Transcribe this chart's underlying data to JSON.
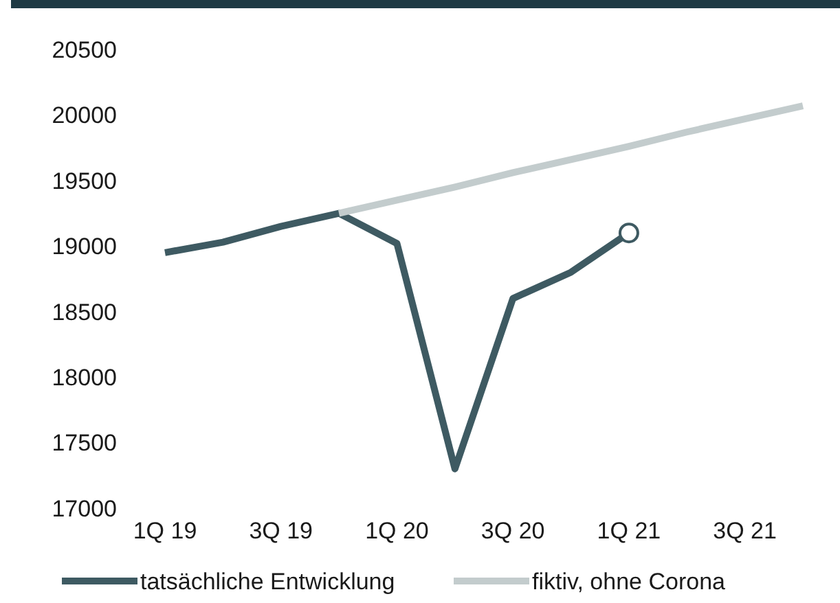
{
  "chart_data": {
    "type": "line",
    "categories": [
      "1Q 19",
      null,
      "3Q 19",
      null,
      "1Q 20",
      null,
      "3Q 20",
      null,
      "1Q 21",
      null,
      "3Q 21",
      null
    ],
    "series": [
      {
        "name": "tatsächliche Entwicklung",
        "color": "#3e5a62",
        "values": [
          18950,
          19030,
          19150,
          19250,
          19020,
          17300,
          18600,
          18800,
          19100,
          null,
          null,
          null
        ]
      },
      {
        "name": "fiktiv, ohne Corona",
        "color": "#c3cccd",
        "values": [
          null,
          null,
          null,
          19250,
          19350,
          19450,
          19560,
          19660,
          19760,
          19870,
          19970,
          20070
        ]
      },
      {
        "type": "scatter",
        "color": "#3e5a62",
        "x": [
          "1Q 21"
        ],
        "values": [
          19100
        ],
        "marker": "circle"
      }
    ],
    "ylim": [
      17000,
      20500
    ],
    "yticks": [
      17000,
      17500,
      18000,
      18500,
      19000,
      19500,
      20000,
      20500
    ],
    "grid": false,
    "legend": "bottom",
    "marker": "none",
    "line_style": "solid"
  }
}
